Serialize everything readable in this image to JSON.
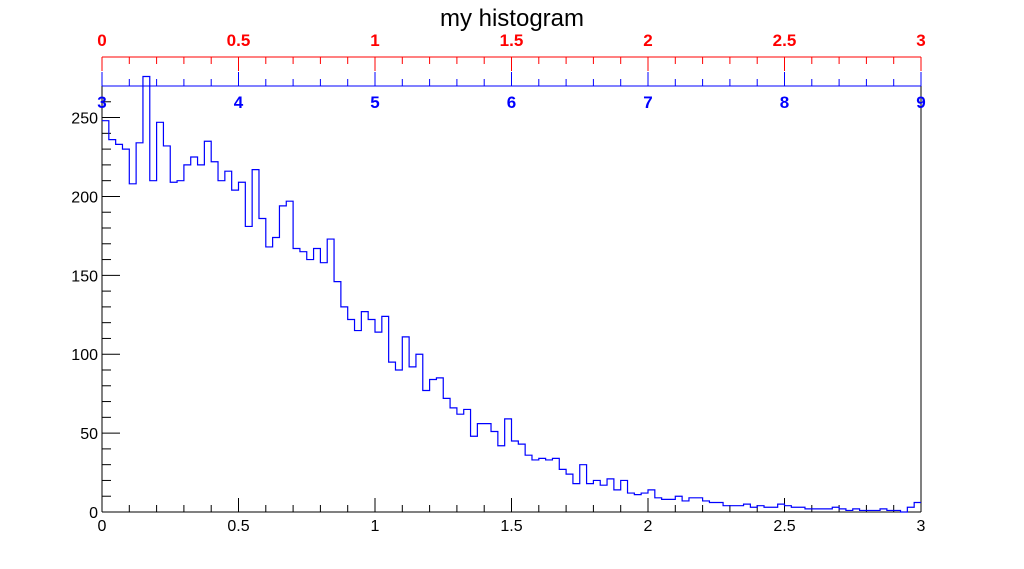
{
  "chart_data": {
    "type": "histogram",
    "title": "my histogram",
    "xlabel": "",
    "ylabel": "",
    "xlim": [
      0,
      3
    ],
    "ylim": [
      0,
      270
    ],
    "grid": false,
    "line_color": "#0000ff",
    "bin_width": 0.025,
    "bin_count": 120,
    "x_ticks": [
      "0",
      "0.5",
      "1",
      "1.5",
      "2",
      "2.5",
      "3"
    ],
    "y_ticks": [
      "0",
      "50",
      "100",
      "150",
      "200",
      "250"
    ],
    "values": [
      248,
      236,
      233,
      230,
      208,
      234,
      276,
      210,
      247,
      232,
      209,
      210,
      220,
      225,
      220,
      235,
      222,
      210,
      216,
      204,
      209,
      181,
      217,
      186,
      168,
      174,
      194,
      197,
      167,
      165,
      160,
      167,
      158,
      173,
      146,
      130,
      122,
      115,
      127,
      122,
      114,
      124,
      95,
      90,
      111,
      92,
      100,
      77,
      84,
      85,
      72,
      66,
      62,
      65,
      48,
      56,
      56,
      51,
      42,
      59,
      45,
      43,
      36,
      33,
      34,
      33,
      34,
      27,
      24,
      18,
      30,
      18,
      20,
      17,
      21,
      14,
      20,
      12,
      11,
      12,
      14,
      9,
      8,
      8,
      10,
      7,
      9,
      9,
      7,
      6,
      6,
      4,
      4,
      4,
      5,
      3,
      4,
      3,
      3,
      5,
      4,
      3,
      3,
      2,
      2,
      2,
      2,
      3,
      2,
      1,
      2,
      1,
      1,
      1,
      2,
      1,
      1,
      0,
      3,
      6
    ]
  },
  "extra_axes": {
    "top_red": {
      "color": "#ff0000",
      "range": [
        0,
        3
      ],
      "labels": [
        "0",
        "0.5",
        "1",
        "1.5",
        "2",
        "2.5",
        "3"
      ]
    },
    "middle_blue": {
      "color": "#0000ff",
      "range": [
        3,
        9
      ],
      "labels": [
        "3",
        "4",
        "5",
        "6",
        "7",
        "8",
        "9"
      ]
    }
  }
}
